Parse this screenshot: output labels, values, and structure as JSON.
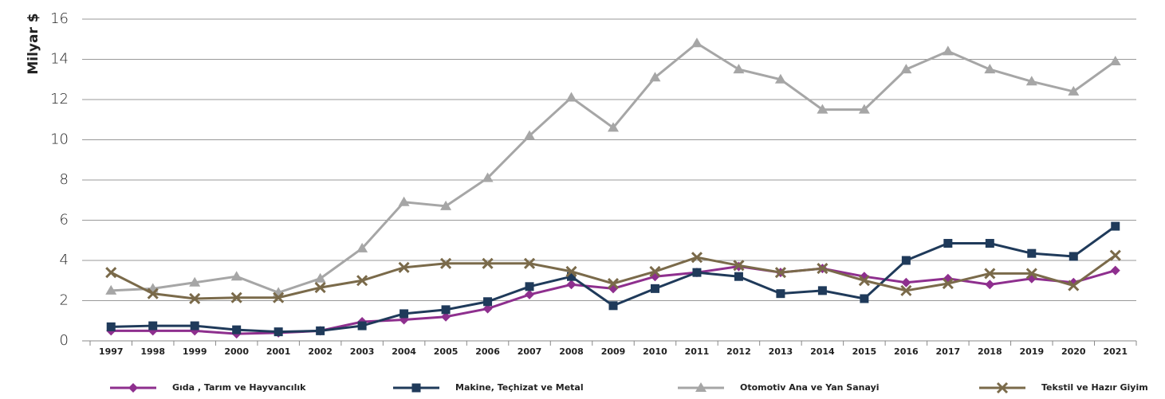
{
  "chart_data": {
    "type": "line",
    "y_label": "Milyar $",
    "categories": [
      "1997",
      "1998",
      "1999",
      "2000",
      "2001",
      "2002",
      "2003",
      "2004",
      "2005",
      "2006",
      "2007",
      "2008",
      "2009",
      "2010",
      "2011",
      "2012",
      "2013",
      "2014",
      "2015",
      "2016",
      "2017",
      "2018",
      "2019",
      "2020",
      "2021"
    ],
    "series": [
      {
        "name": "Gıda , Tarım ve Hayvancılık",
        "color": "#8e2f8e",
        "marker": "diamond",
        "values": [
          0.5,
          0.5,
          0.5,
          0.35,
          0.4,
          0.5,
          0.95,
          1.05,
          1.2,
          1.6,
          2.3,
          2.8,
          2.6,
          3.2,
          3.4,
          3.7,
          3.4,
          3.6,
          3.2,
          2.9,
          3.1,
          2.8,
          3.1,
          2.9,
          3.5
        ]
      },
      {
        "name": "Makine, Teçhizat ve Metal",
        "color": "#1f3a5a",
        "marker": "square",
        "values": [
          0.7,
          0.75,
          0.75,
          0.55,
          0.45,
          0.5,
          0.75,
          1.35,
          1.55,
          1.95,
          2.7,
          3.2,
          1.75,
          2.6,
          3.4,
          3.2,
          2.35,
          2.5,
          2.1,
          4.0,
          4.85,
          4.85,
          4.35,
          4.2,
          5.7
        ]
      },
      {
        "name": "Otomotiv Ana ve Yan Sanayi",
        "color": "#a6a6a6",
        "marker": "triangle",
        "values": [
          2.5,
          2.6,
          2.9,
          3.2,
          2.4,
          3.1,
          4.6,
          6.9,
          6.7,
          8.1,
          10.2,
          12.1,
          10.6,
          13.1,
          14.8,
          13.5,
          13.0,
          11.5,
          11.5,
          13.5,
          14.4,
          13.5,
          12.9,
          12.4,
          13.9
        ]
      },
      {
        "name": "Tekstil ve Hazır Giyim",
        "color": "#7a6a4a",
        "marker": "x",
        "values": [
          3.4,
          2.35,
          2.1,
          2.15,
          2.15,
          2.65,
          3.0,
          3.65,
          3.85,
          3.85,
          3.85,
          3.45,
          2.85,
          3.45,
          4.15,
          3.75,
          3.4,
          3.6,
          3.0,
          2.5,
          2.85,
          3.35,
          3.35,
          2.75,
          4.25
        ]
      }
    ],
    "ylim": [
      0,
      16
    ],
    "yticks": [
      0,
      2,
      4,
      6,
      8,
      10,
      12,
      14,
      16
    ],
    "grid": true
  }
}
